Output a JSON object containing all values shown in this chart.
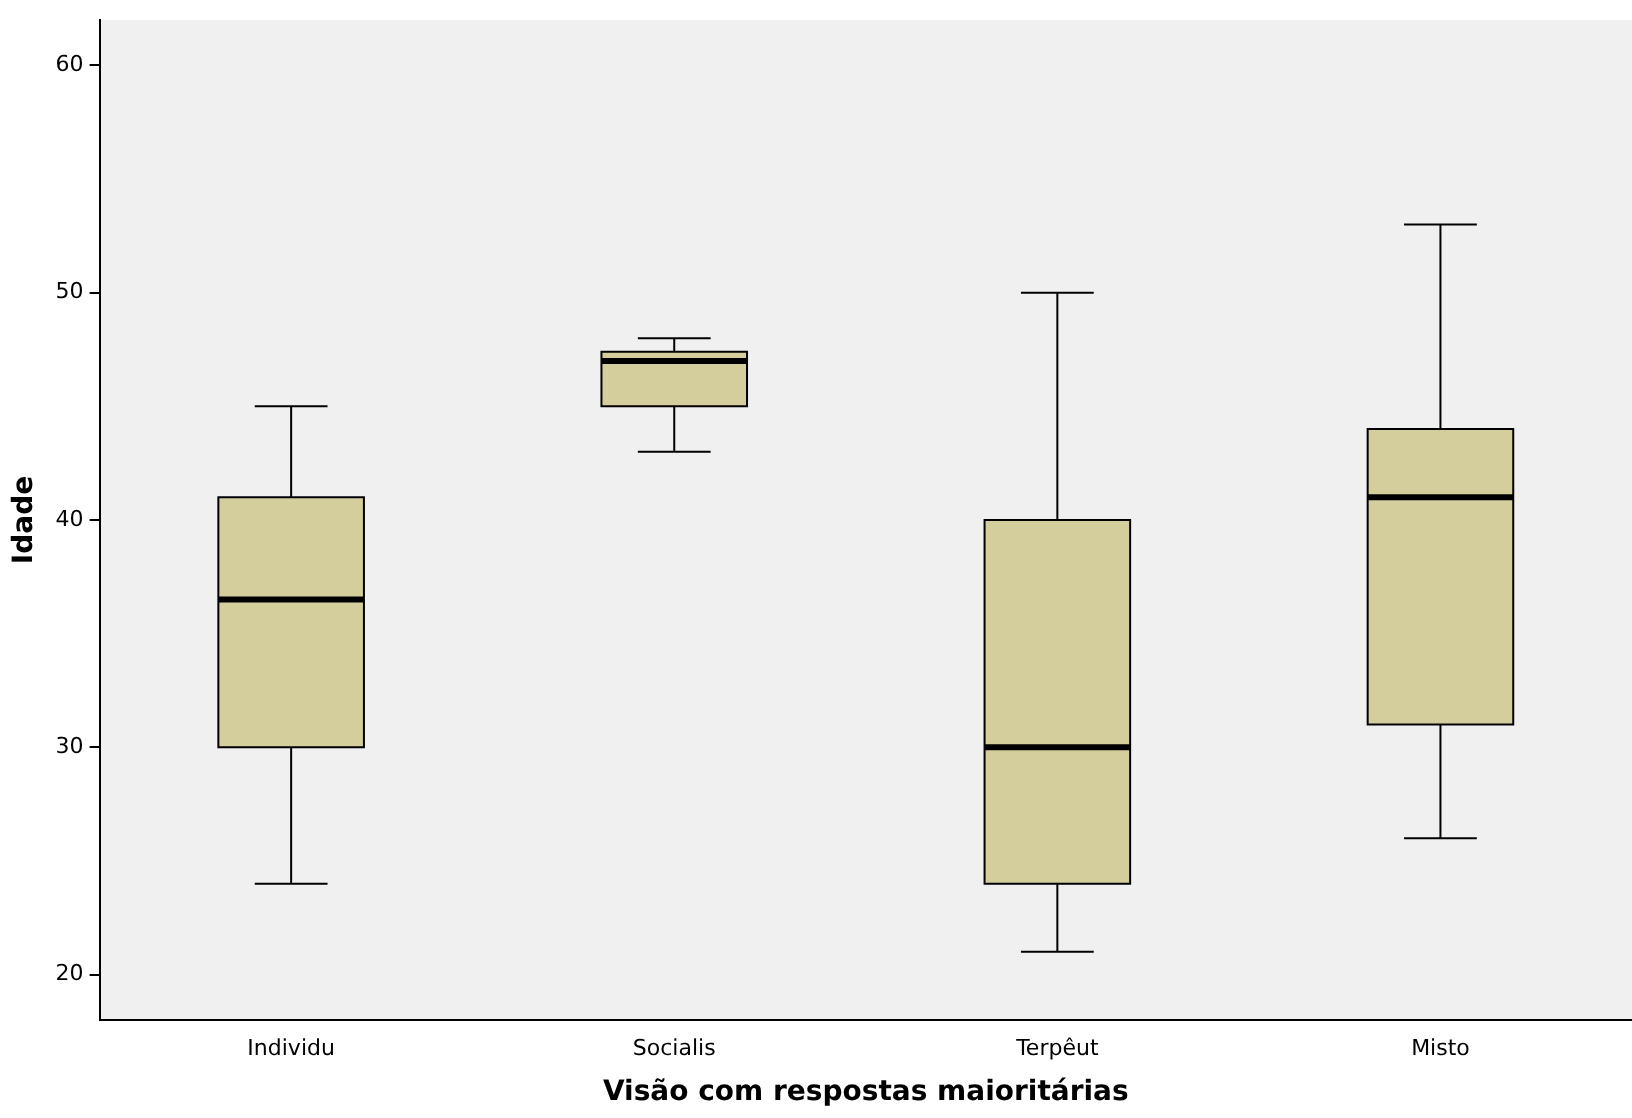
{
  "chart_data": {
    "type": "box",
    "xlabel": "Visão com respostas maioritárias",
    "ylabel": "Idade",
    "categories": [
      "Individu",
      "Socialis",
      "Terpêut",
      "Misto"
    ],
    "color": "#d3ce9b",
    "boxes": [
      {
        "low": 24,
        "q1": 30,
        "median": 36.5,
        "q3": 41,
        "high": 45
      },
      {
        "low": 43,
        "q1": 45,
        "median": 47,
        "q3": 47.4,
        "high": 48
      },
      {
        "low": 21,
        "q1": 24,
        "median": 30,
        "q3": 40,
        "high": 50
      },
      {
        "low": 26,
        "q1": 31,
        "median": 41,
        "q3": 44,
        "high": 53
      }
    ],
    "ylim": [
      18,
      62
    ],
    "yticks": [
      20,
      30,
      40,
      50,
      60
    ],
    "grid": false,
    "legend": false
  }
}
